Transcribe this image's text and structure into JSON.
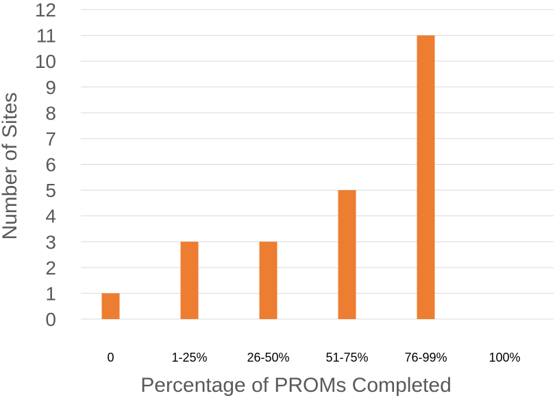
{
  "chart_data": {
    "type": "bar",
    "title": "",
    "xlabel": "Percentage of PROMs Completed",
    "ylabel": "Number of Sites",
    "categories": [
      "0",
      "1-25%",
      "26-50%",
      "51-75%",
      "76-99%",
      "100%"
    ],
    "values": [
      1,
      3,
      3,
      5,
      11,
      0
    ],
    "ylim": [
      0,
      12
    ],
    "yticks": [
      "0",
      "1",
      "2",
      "3",
      "4",
      "5",
      "6",
      "7",
      "8",
      "9",
      "10",
      "11",
      "12"
    ],
    "grid": true,
    "legend": "none",
    "bar_color": "#ed7d31",
    "grid_color": "#d9d9d9",
    "text_color": "#595959"
  }
}
